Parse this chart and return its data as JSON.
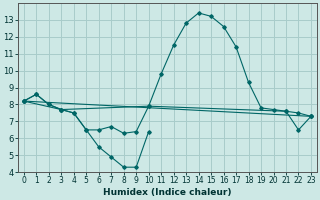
{
  "xlabel": "Humidex (Indice chaleur)",
  "background_color": "#cde8e5",
  "grid_color": "#a8ccca",
  "line_color": "#006666",
  "xlim": [
    -0.5,
    23.5
  ],
  "ylim": [
    4,
    14
  ],
  "yticks": [
    4,
    5,
    6,
    7,
    8,
    9,
    10,
    11,
    12,
    13
  ],
  "xticks": [
    0,
    1,
    2,
    3,
    4,
    5,
    6,
    7,
    8,
    9,
    10,
    11,
    12,
    13,
    14,
    15,
    16,
    17,
    18,
    19,
    20,
    21,
    22,
    23
  ],
  "series": [
    {
      "x": [
        0,
        1,
        2,
        3,
        4,
        5,
        6,
        7,
        8,
        9,
        10,
        11,
        12,
        13,
        14,
        15,
        16,
        17,
        18,
        19,
        20,
        21,
        22,
        23
      ],
      "y": [
        8.2,
        8.6,
        8.0,
        7.7,
        7.5,
        6.5,
        6.5,
        6.7,
        6.3,
        6.4,
        7.9,
        9.8,
        11.5,
        12.8,
        13.4,
        13.2,
        12.6,
        11.4,
        9.3,
        7.8,
        7.7,
        7.6,
        7.5,
        7.3
      ]
    },
    {
      "x": [
        0,
        1,
        2,
        3,
        10,
        21,
        22,
        23
      ],
      "y": [
        8.2,
        8.6,
        8.0,
        7.7,
        7.9,
        7.6,
        6.5,
        7.3
      ]
    },
    {
      "x": [
        0,
        23
      ],
      "y": [
        8.2,
        7.3
      ]
    },
    {
      "x": [
        0,
        3,
        4,
        5,
        6,
        7,
        8,
        9,
        10
      ],
      "y": [
        8.2,
        7.7,
        7.5,
        6.5,
        5.5,
        4.9,
        4.3,
        4.3,
        6.4
      ]
    }
  ]
}
